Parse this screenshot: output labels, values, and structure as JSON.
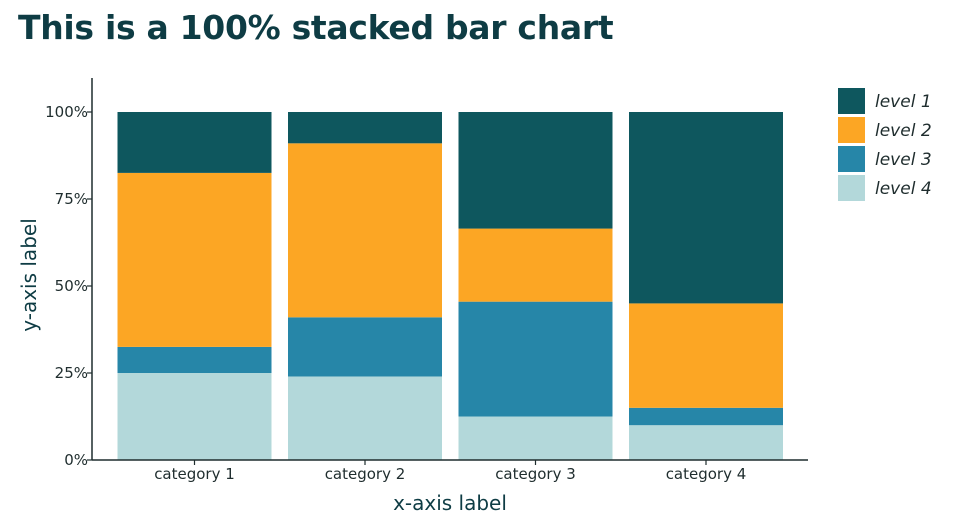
{
  "chart_data": {
    "type": "bar",
    "stacked": true,
    "normalized": true,
    "title": "This is a 100% stacked bar chart",
    "xlabel": "x-axis label",
    "ylabel": "y-axis label",
    "categories": [
      "category 1",
      "category 2",
      "category 3",
      "category 4"
    ],
    "ylim": [
      0,
      100
    ],
    "yticks": [
      0,
      25,
      50,
      75,
      100
    ],
    "ytick_labels": [
      "0%",
      "25%",
      "50%",
      "75%",
      "100%"
    ],
    "grid": false,
    "legend_position": "top-right",
    "series": [
      {
        "name": "level 4",
        "color": "#b3d8da",
        "values": [
          25,
          24,
          12.5,
          10
        ]
      },
      {
        "name": "level 3",
        "color": "#2686a8",
        "values": [
          7.5,
          17,
          33,
          5
        ]
      },
      {
        "name": "level 2",
        "color": "#fca624",
        "values": [
          50,
          50,
          21,
          30
        ]
      },
      {
        "name": "level 1",
        "color": "#0e575e",
        "values": [
          17.5,
          9,
          33.5,
          55
        ]
      }
    ],
    "legend_order": [
      "level 1",
      "level 2",
      "level 3",
      "level 4"
    ]
  }
}
